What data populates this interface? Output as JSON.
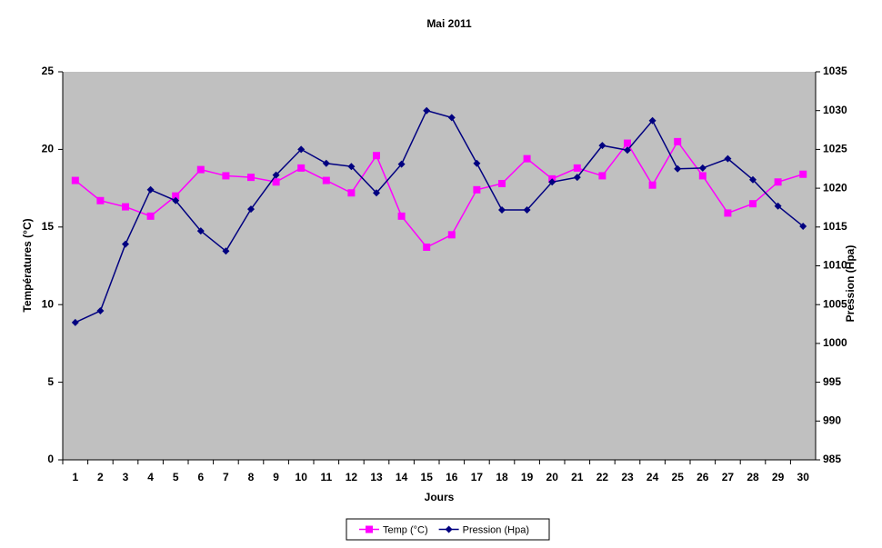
{
  "chart_data": {
    "type": "line",
    "title": "Mai 2011",
    "xlabel": "Jours",
    "ylabel": "Températures (°C)",
    "y2label": "Pression (Hpa)",
    "categories": [
      "1",
      "2",
      "3",
      "4",
      "5",
      "6",
      "7",
      "8",
      "9",
      "10",
      "11",
      "12",
      "13",
      "14",
      "15",
      "16",
      "17",
      "18",
      "19",
      "20",
      "21",
      "22",
      "23",
      "24",
      "25",
      "26",
      "27",
      "28",
      "29",
      "30"
    ],
    "series": [
      {
        "name": "Temp (°C)",
        "color": "#ff00ff",
        "marker": "square",
        "values": [
          18.0,
          16.7,
          16.3,
          15.7,
          17.0,
          18.7,
          18.3,
          18.2,
          17.9,
          18.8,
          18.0,
          17.2,
          19.6,
          15.7,
          13.7,
          14.5,
          17.4,
          17.8,
          19.4,
          18.1,
          18.8,
          18.3,
          20.4,
          17.7,
          20.5,
          18.3,
          15.9,
          16.5,
          17.9,
          18.4
        ]
      },
      {
        "name": "Pression (Hpa)",
        "color": "#000080",
        "marker": "diamond",
        "axis": "y2",
        "values": [
          1002.7,
          1004.2,
          1012.8,
          1019.8,
          1018.4,
          1014.5,
          1011.9,
          1017.3,
          1021.7,
          1025.0,
          1023.2,
          1022.8,
          1019.4,
          1023.1,
          1030.0,
          1029.1,
          1023.2,
          1017.2,
          1017.2,
          1020.8,
          1021.4,
          1025.5,
          1024.9,
          1028.7,
          1022.5,
          1022.6,
          1023.8,
          1021.1,
          1017.7,
          1015.1
        ]
      }
    ],
    "ylim": [
      0,
      25
    ],
    "yticks": [
      0,
      5,
      10,
      15,
      20,
      25
    ],
    "y2lim": [
      985,
      1035
    ],
    "y2ticks": [
      985,
      990,
      995,
      1000,
      1005,
      1010,
      1015,
      1020,
      1025,
      1030,
      1035
    ],
    "grid": false,
    "legend": "bottom"
  }
}
